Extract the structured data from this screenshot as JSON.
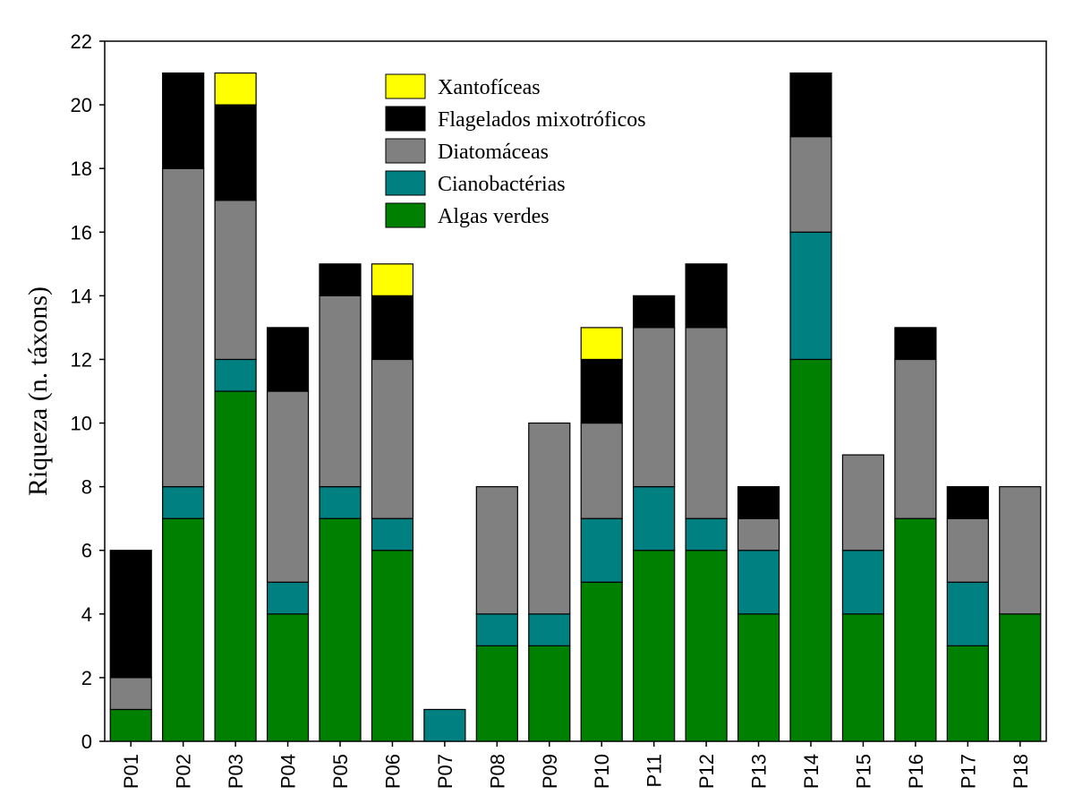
{
  "chart_data": {
    "type": "bar",
    "stacked": true,
    "title": "",
    "xlabel": "",
    "ylabel": "Riqueza (n. táxons)",
    "ylim": [
      0,
      22
    ],
    "yticks": [
      0,
      2,
      4,
      6,
      8,
      10,
      12,
      14,
      16,
      18,
      20,
      22
    ],
    "grid": false,
    "legend_position": "top-center",
    "categories": [
      "P01",
      "P02",
      "P03",
      "P04",
      "P05",
      "P06",
      "P07",
      "P08",
      "P09",
      "P10",
      "P11",
      "P12",
      "P13",
      "P14",
      "P15",
      "P16",
      "P17",
      "P18"
    ],
    "series": [
      {
        "name": "Algas verdes",
        "color": "#008000",
        "values": [
          1,
          7,
          11,
          4,
          7,
          6,
          0,
          3,
          3,
          5,
          6,
          6,
          4,
          12,
          4,
          7,
          3,
          4
        ]
      },
      {
        "name": "Cianobactérias",
        "color": "#008080",
        "values": [
          0,
          1,
          1,
          1,
          1,
          1,
          1,
          1,
          1,
          2,
          2,
          1,
          2,
          4,
          2,
          0,
          2,
          0
        ]
      },
      {
        "name": "Diatomáceas",
        "color": "#808080",
        "values": [
          1,
          10,
          5,
          6,
          6,
          5,
          0,
          4,
          6,
          3,
          5,
          6,
          1,
          3,
          3,
          5,
          2,
          4
        ]
      },
      {
        "name": "Flagelados mixotróficos",
        "color": "#000000",
        "values": [
          4,
          3,
          3,
          2,
          1,
          2,
          0,
          0,
          0,
          2,
          1,
          2,
          1,
          2,
          0,
          1,
          1,
          0
        ]
      },
      {
        "name": "Xantofíceas",
        "color": "#ffff00",
        "values": [
          0,
          0,
          1,
          0,
          0,
          1,
          0,
          0,
          0,
          1,
          0,
          0,
          0,
          0,
          0,
          0,
          0,
          0
        ]
      }
    ],
    "legend_order": [
      "Xantofíceas",
      "Flagelados mixotróficos",
      "Diatomáceas",
      "Cianobactérias",
      "Algas verdes"
    ]
  }
}
